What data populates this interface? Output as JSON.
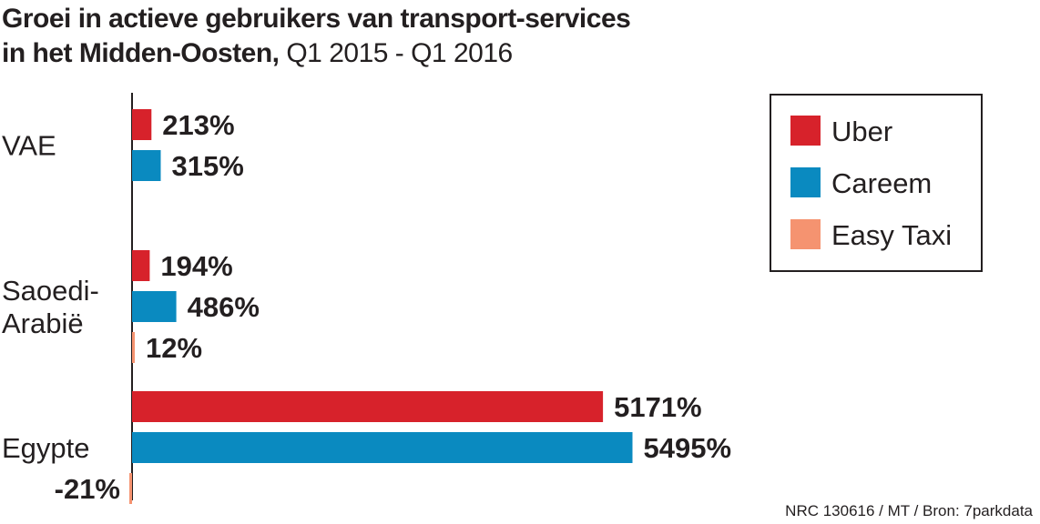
{
  "title": {
    "bold": "Groei in actieve gebruikers van transport-services",
    "bold2": "in het Midden-Oosten,",
    "period": "Q1 2015 - Q1 2016"
  },
  "source": "NRC 130616 / MT / Bron: 7parkdata",
  "colors": {
    "Uber": "#d7222b",
    "Careem": "#0a8ac0",
    "Easy Taxi": "#f59370"
  },
  "chart_data": {
    "type": "bar",
    "orientation": "horizontal",
    "unit": "%",
    "categories": [
      {
        "label_lines": [
          "VAE"
        ]
      },
      {
        "label_lines": [
          "Saoedi-",
          "Arabië"
        ]
      },
      {
        "label_lines": [
          "Egypte"
        ]
      }
    ],
    "series": [
      {
        "name": "Uber",
        "values": [
          213,
          194,
          5171
        ],
        "labels": [
          "213%",
          "194%",
          "5171%"
        ]
      },
      {
        "name": "Careem",
        "values": [
          315,
          486,
          5495
        ],
        "labels": [
          "315%",
          "486%",
          "5495%"
        ]
      },
      {
        "name": "Easy Taxi",
        "values": [
          null,
          12,
          -21
        ],
        "labels": [
          "",
          "12%",
          "-21%"
        ]
      }
    ],
    "legend": {
      "position": "top-right",
      "entries": [
        "Uber",
        "Careem",
        "Easy Taxi"
      ]
    },
    "grid": false
  }
}
